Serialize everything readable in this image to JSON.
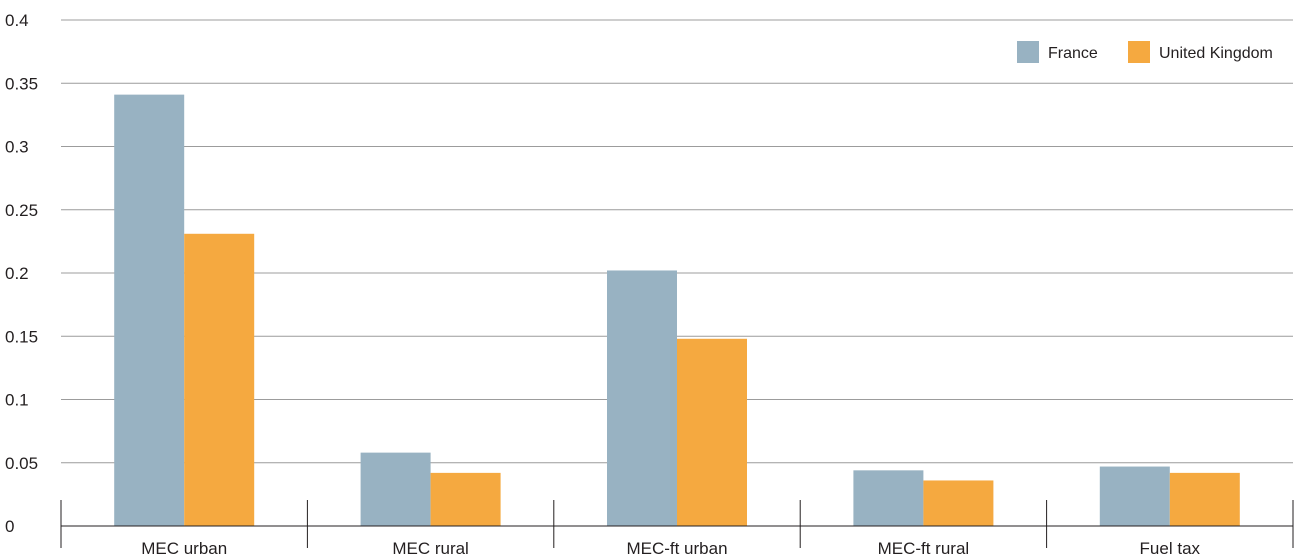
{
  "chart_data": {
    "type": "bar",
    "title": "",
    "xlabel": "",
    "ylabel": "",
    "categories": [
      "MEC urban",
      "MEC rural",
      "MEC-ft urban",
      "MEC-ft rural",
      "Fuel tax"
    ],
    "series": [
      {
        "name": "France",
        "color": "#98b2c2",
        "values": [
          0.341,
          0.058,
          0.202,
          0.044,
          0.047
        ]
      },
      {
        "name": "United Kingdom",
        "color": "#f5a940",
        "values": [
          0.231,
          0.042,
          0.148,
          0.036,
          0.042
        ]
      }
    ],
    "yticks": [
      "0",
      "0.05",
      "0.1",
      "0.15",
      "0.2",
      "0.25",
      "0.3",
      "0.35",
      "0.4"
    ],
    "ylim": [
      0,
      0.4
    ],
    "grid": true,
    "legend_position": "top-right"
  }
}
